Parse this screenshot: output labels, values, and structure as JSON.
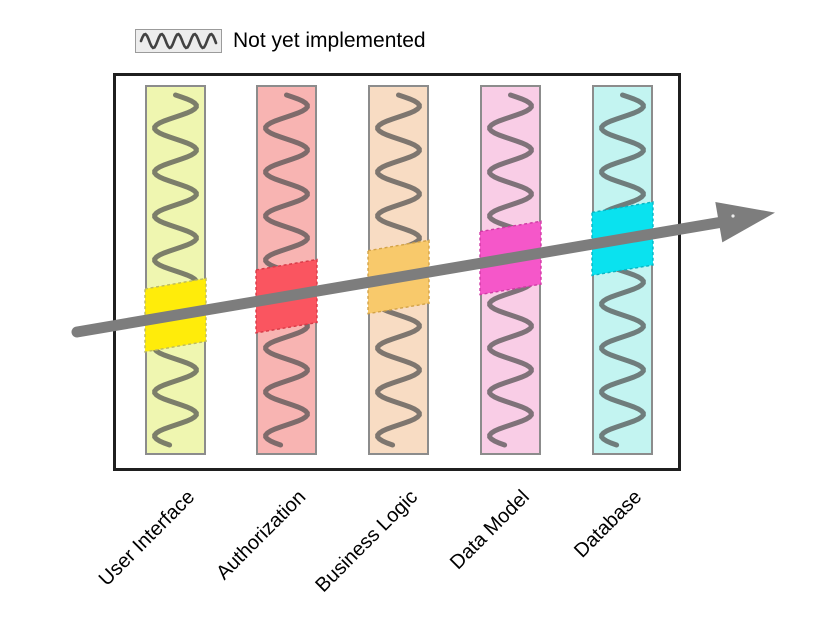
{
  "legend": {
    "label": "Not yet implemented",
    "swatch_icon": "squiggle-icon"
  },
  "diagram": {
    "layers": [
      {
        "label": "User Interface",
        "bar_color": "#eff6b0",
        "slice_color": "#ffec0a",
        "slice_border": "#bdba60"
      },
      {
        "label": "Authorization",
        "bar_color": "#f8b4b2",
        "slice_color": "#fa5560",
        "slice_border": "#d83a47"
      },
      {
        "label": "Business Logic",
        "bar_color": "#f8dcc3",
        "slice_color": "#f8c96b",
        "slice_border": "#d3a348"
      },
      {
        "label": "Data Model",
        "bar_color": "#f9cde6",
        "slice_color": "#f557c9",
        "slice_border": "#d13ba6"
      },
      {
        "label": "Database",
        "bar_color": "#c3f4f1",
        "slice_color": "#0ae2ef",
        "slice_border": "#09b6c4"
      }
    ],
    "arrow_color": "#7d7d7d",
    "squiggle_color": "#4f4f4f"
  }
}
